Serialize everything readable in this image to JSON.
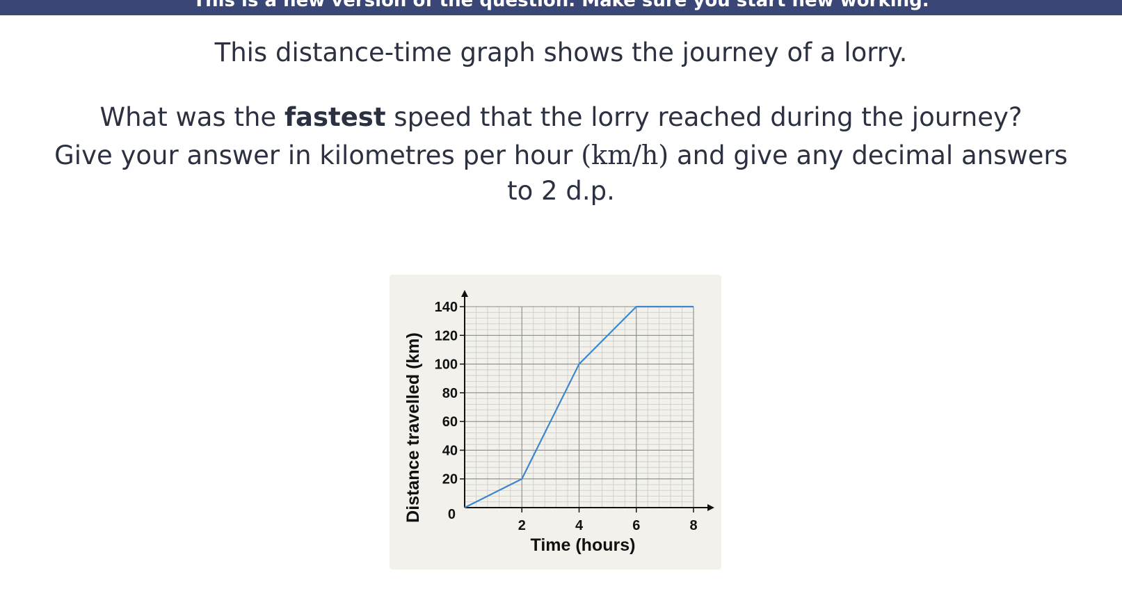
{
  "banner": {
    "text": "This is a new version of the question. Make sure you start new working."
  },
  "question": {
    "line1": "This distance-time graph shows the journey of a lorry.",
    "line2_before": "What was the ",
    "line2_bold": "fastest",
    "line2_after": " speed that the lorry reached during the journey?",
    "line3_before": "Give your answer in kilometres per hour ",
    "line3_unit": "(km/h)",
    "line3_after": " and give any decimal answers",
    "line4": "to 2 d.p."
  },
  "chart_data": {
    "type": "line",
    "xlabel": "Time (hours)",
    "ylabel": "Distance travelled (km)",
    "xlim": [
      0,
      8
    ],
    "ylim": [
      0,
      140
    ],
    "x_ticks": [
      "2",
      "4",
      "6",
      "8"
    ],
    "y_ticks": [
      "0",
      "20",
      "40",
      "60",
      "80",
      "100",
      "120",
      "140"
    ],
    "grid": true,
    "line_color": "#3f86c8",
    "series": [
      {
        "x": [
          0,
          2,
          4,
          6,
          8
        ],
        "y": [
          0,
          20,
          100,
          140,
          140
        ]
      }
    ]
  }
}
